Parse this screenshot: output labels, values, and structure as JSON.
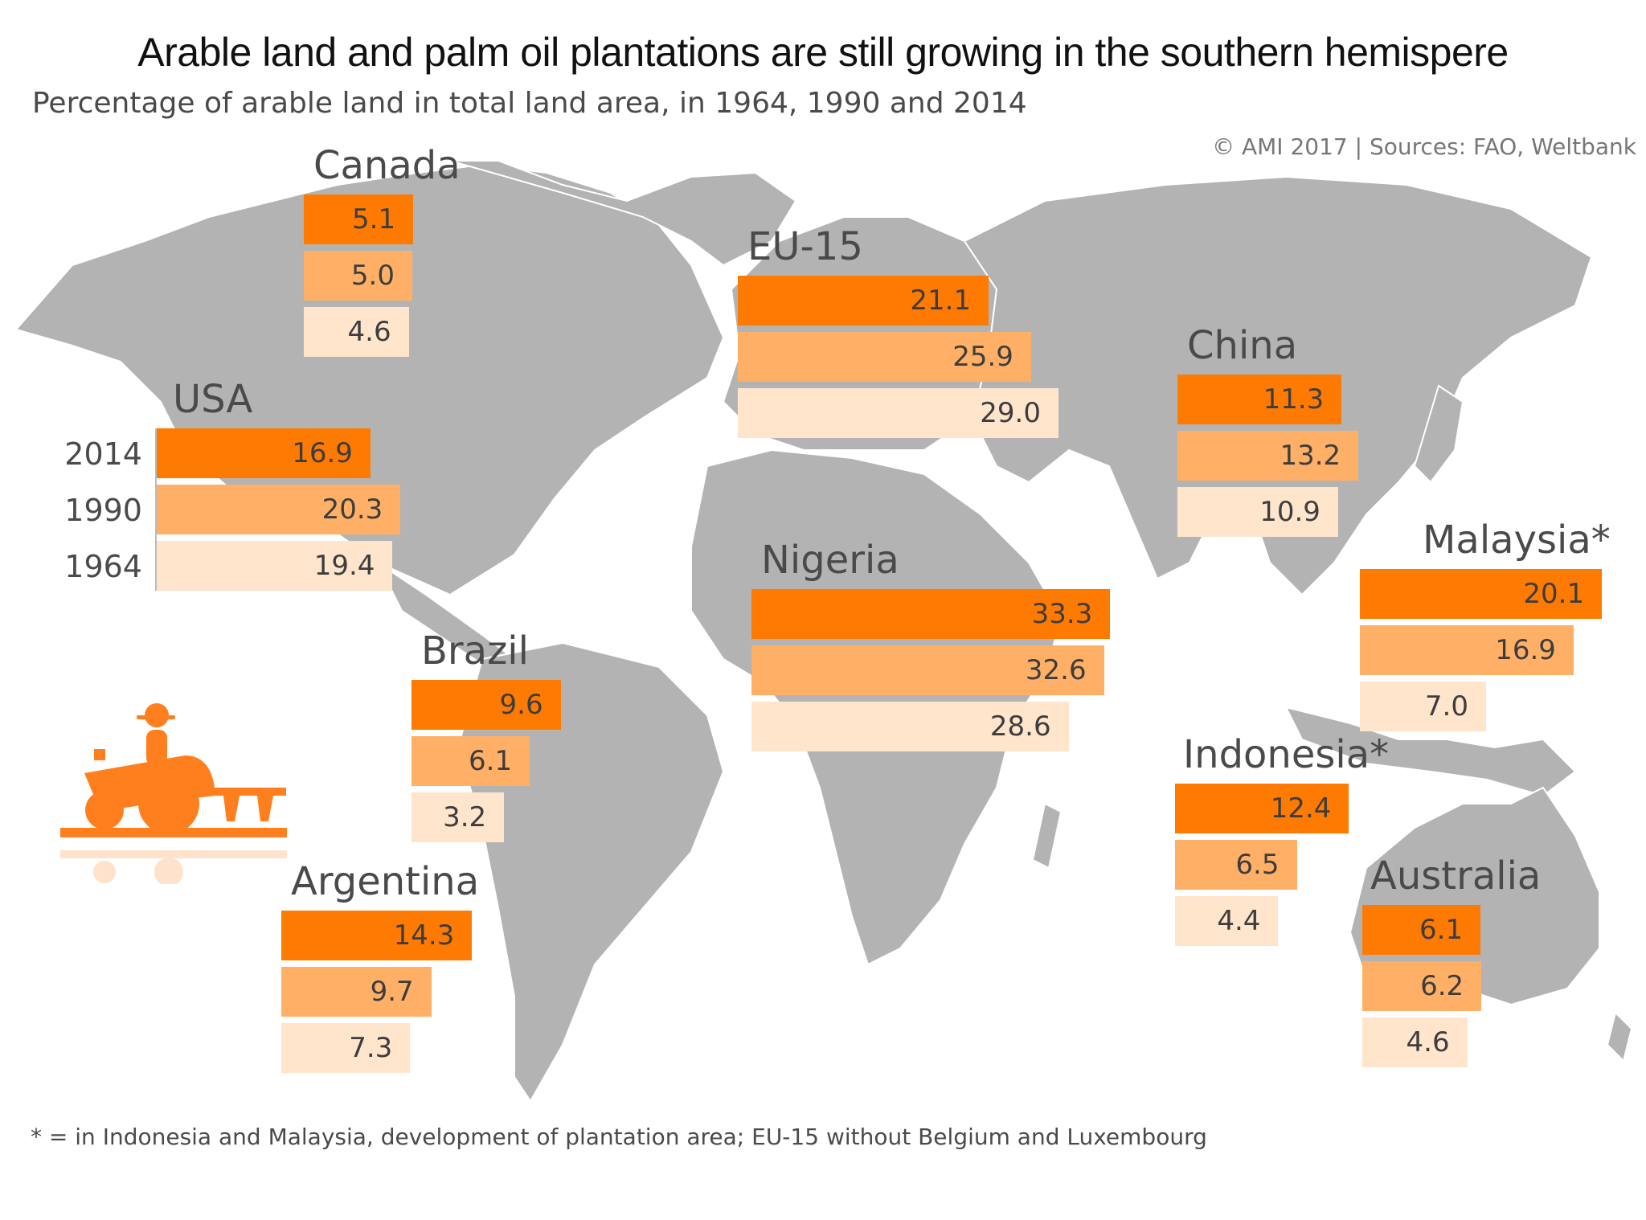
{
  "header": {
    "title": "Arable land and palm oil plantations are still growing in the southern hemispere",
    "subtitle": "Percentage of arable land in total land area, in 1964, 1990 and 2014",
    "source": "© AMI 2017 | Sources: FAO, Weltbank"
  },
  "footnote": "* = in Indonesia and Malaysia, development of plantation area; EU-15 without Belgium and Luxembourg",
  "icon": "tractor-farmer-icon",
  "colors": {
    "y2014": "#FF7A00",
    "y1990": "#FFB066",
    "y1964": "#FFE5CC",
    "map": "#B3B3B3",
    "text": "#4A4A4A"
  },
  "chart_data": {
    "type": "bar",
    "title": "Arable land and palm oil plantations are still growing in the southern hemispere",
    "subtitle": "Percentage of arable land in total land area, in 1964, 1990 and 2014",
    "unit": "% of total land area",
    "legend": [
      "2014",
      "1990",
      "1964"
    ],
    "legend_placement": "left of USA bars",
    "categories": [
      "Canada",
      "USA",
      "EU-15",
      "China",
      "Malaysia*",
      "Nigeria",
      "Brazil",
      "Argentina",
      "Indonesia*",
      "Australia"
    ],
    "series": [
      {
        "name": "2014",
        "values": [
          5.1,
          16.9,
          21.1,
          11.3,
          20.1,
          33.3,
          9.6,
          14.3,
          12.4,
          6.1
        ]
      },
      {
        "name": "1990",
        "values": [
          5.0,
          20.3,
          25.9,
          13.2,
          16.9,
          32.6,
          6.1,
          9.7,
          6.5,
          6.2
        ]
      },
      {
        "name": "1964",
        "values": [
          4.6,
          19.4,
          29.0,
          10.9,
          7.0,
          28.6,
          3.2,
          7.3,
          4.4,
          4.6
        ]
      }
    ],
    "labels": [
      [
        "5.1",
        "5.0",
        "4.6"
      ],
      [
        "16.9",
        "20.3",
        "19.4"
      ],
      [
        "21.1",
        "25.9",
        "29.0"
      ],
      [
        "11.3",
        "13.2",
        "10.9"
      ],
      [
        "20.1",
        "16.9",
        "7.0"
      ],
      [
        "33.3",
        "32.6",
        "28.6"
      ],
      [
        "9.6",
        "6.1",
        "3.2"
      ],
      [
        "14.3",
        "9.7",
        "7.3"
      ],
      [
        "12.4",
        "6.5",
        "4.4"
      ],
      [
        "6.1",
        "6.2",
        "4.6"
      ]
    ],
    "year_labels": [
      "2014",
      "1990",
      "1964"
    ]
  }
}
